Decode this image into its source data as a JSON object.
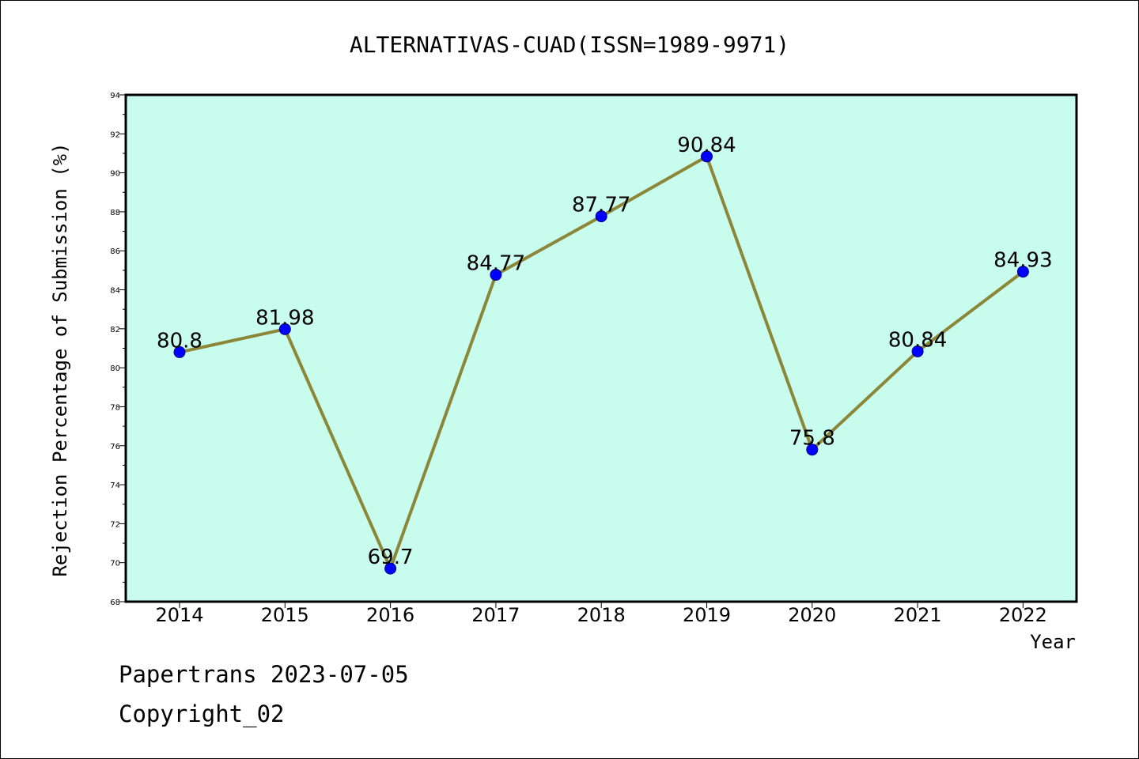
{
  "chart_data": {
    "type": "line",
    "title": "ALTERNATIVAS-CUAD(ISSN=1989-9971)",
    "xlabel": "Year",
    "ylabel": "Rejection Percentage of Submission (%)",
    "categories": [
      "2014",
      "2015",
      "2016",
      "2017",
      "2018",
      "2019",
      "2020",
      "2021",
      "2022"
    ],
    "values": [
      80.8,
      81.98,
      69.7,
      84.77,
      87.77,
      90.84,
      75.8,
      80.84,
      84.93
    ],
    "data_labels": [
      "80.8",
      "81.98",
      "69.7",
      "84.77",
      "87.77",
      "90.84",
      "75.8",
      "80.84",
      "84.93"
    ],
    "ylim": [
      68,
      94
    ],
    "yticks": [
      68,
      70,
      72,
      74,
      76,
      78,
      80,
      82,
      84,
      86,
      88,
      90,
      92,
      94
    ],
    "grid": false,
    "legend": "none",
    "colors": {
      "plot_background": "#c8fcec",
      "line": "#8b8638",
      "marker": "#0000ff",
      "marker_edge": "#00008b",
      "axis": "#000000"
    }
  },
  "footer": {
    "line1": "Papertrans 2023-07-05",
    "line2": "Copyright_02"
  }
}
